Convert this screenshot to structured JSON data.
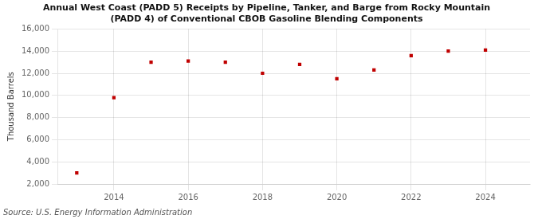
{
  "chart_data": {
    "type": "scatter",
    "title": "Annual West Coast (PADD 5) Receipts by Pipeline, Tanker, and Barge from Rocky Mountain\n(PADD 4) of Conventional CBOB Gasoline Blending Components",
    "ylabel": "Thousand Barrels",
    "annotation": "Source: U.S. Energy Information Administration",
    "x": [
      2013,
      2014,
      2015,
      2016,
      2017,
      2018,
      2019,
      2020,
      2021,
      2022,
      2023,
      2024
    ],
    "values": [
      3000,
      9800,
      13000,
      13100,
      13000,
      12000,
      12800,
      11500,
      12300,
      13600,
      14000,
      14100
    ],
    "color": "#c00000",
    "marker": "square",
    "xlim": [
      2012.5,
      2025.2
    ],
    "xticks": [
      2014,
      2016,
      2018,
      2020,
      2022,
      2024
    ],
    "ylim": [
      2000,
      16000
    ],
    "yticks": [
      {
        "value": 2000,
        "label": "2,000"
      },
      {
        "value": 4000,
        "label": "4,000"
      },
      {
        "value": 6000,
        "label": "6,000"
      },
      {
        "value": 8000,
        "label": "8,000"
      },
      {
        "value": 10000,
        "label": "10,000"
      },
      {
        "value": 12000,
        "label": "12,000"
      },
      {
        "value": 14000,
        "label": "14,000"
      },
      {
        "value": 16000,
        "label": "16,000"
      }
    ],
    "grid": true
  }
}
